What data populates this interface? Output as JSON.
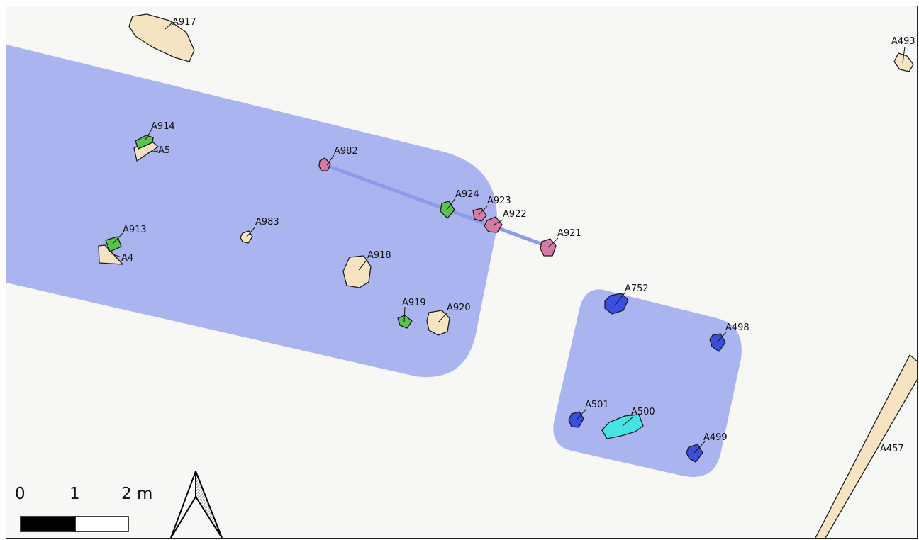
{
  "map": {
    "colors": {
      "background": "#f7f7f5",
      "zone": "#aab4ef",
      "tan": "#f6e3c2",
      "green": "#59c350",
      "pink": "#d67aa6",
      "blue": "#3a4fe0",
      "cyan": "#45e3e1",
      "outline": "#1c1c1c"
    },
    "features": [
      {
        "id": "A917",
        "fill": "tan"
      },
      {
        "id": "A493",
        "fill": "tan"
      },
      {
        "id": "A914",
        "fill": "green"
      },
      {
        "id": "A5",
        "fill": "tan"
      },
      {
        "id": "A982",
        "fill": "pink"
      },
      {
        "id": "A924",
        "fill": "green"
      },
      {
        "id": "A923",
        "fill": "pink"
      },
      {
        "id": "A922",
        "fill": "pink"
      },
      {
        "id": "A921",
        "fill": "pink"
      },
      {
        "id": "A913",
        "fill": "green"
      },
      {
        "id": "A4",
        "fill": "tan"
      },
      {
        "id": "A983",
        "fill": "tan"
      },
      {
        "id": "A918",
        "fill": "tan"
      },
      {
        "id": "A919",
        "fill": "green"
      },
      {
        "id": "A920",
        "fill": "tan"
      },
      {
        "id": "A752",
        "fill": "blue"
      },
      {
        "id": "A498",
        "fill": "blue"
      },
      {
        "id": "A501",
        "fill": "blue"
      },
      {
        "id": "A500",
        "fill": "cyan"
      },
      {
        "id": "A499",
        "fill": "blue"
      },
      {
        "id": "A457",
        "fill": "tan"
      }
    ],
    "scale_bar": {
      "ticks": [
        "0",
        "1",
        "2 m"
      ]
    },
    "north_arrow": {
      "icon": "north-arrow-icon"
    }
  }
}
